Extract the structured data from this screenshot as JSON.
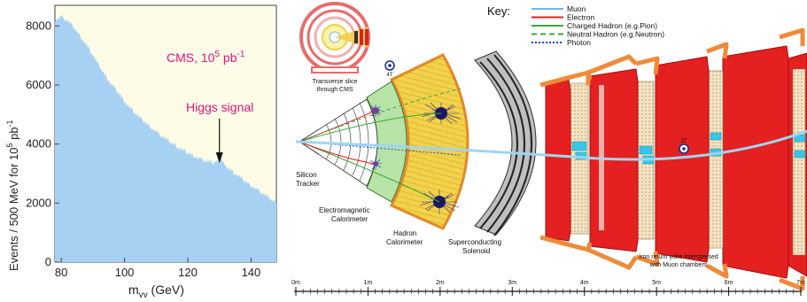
{
  "chart_data": {
    "type": "area",
    "title": "",
    "annotation_cms": "CMS, 10",
    "annotation_cms_exp": "5",
    "annotation_cms_unit": " pb",
    "annotation_cms_unit_exp": "-1",
    "annotation_signal": "Higgs  signal",
    "ylabel_prefix": "Events / 500 MeV  for 10",
    "ylabel_exp": "5",
    "ylabel_suffix": " pb",
    "ylabel_suffix_exp": "-1",
    "xlabel_main": "m",
    "xlabel_sub": "γγ",
    "xlabel_unit": " (GeV)",
    "xlim": [
      78,
      148
    ],
    "ylim": [
      0,
      8700
    ],
    "xticks": [
      80,
      100,
      120,
      140
    ],
    "yticks": [
      0,
      2000,
      4000,
      6000,
      8000
    ],
    "signal_mass": 130,
    "x": [
      78,
      80,
      82,
      84,
      86,
      88,
      90,
      92,
      94,
      96,
      98,
      100,
      102,
      104,
      106,
      108,
      110,
      112,
      114,
      116,
      118,
      120,
      122,
      124,
      126,
      128,
      129,
      130,
      131,
      132,
      134,
      136,
      138,
      140,
      142,
      144,
      146,
      148
    ],
    "y": [
      8200,
      8320,
      8180,
      7950,
      7650,
      7350,
      7000,
      6650,
      6300,
      6000,
      5750,
      5450,
      5200,
      4980,
      4780,
      4600,
      4420,
      4250,
      4100,
      3950,
      3820,
      3700,
      3600,
      3500,
      3420,
      3350,
      3450,
      3550,
      3420,
      3250,
      3080,
      2920,
      2750,
      2600,
      2450,
      2300,
      2150,
      2000
    ],
    "fill_color": "#a6d1f2",
    "plot_bg": "#fefbe6",
    "annotation_color": "#e0157a"
  },
  "detector": {
    "key_title": "Key:",
    "legend": [
      {
        "label": "Muon",
        "color": "#64bde8",
        "style": "solid"
      },
      {
        "label": "Electron",
        "color": "#e02020",
        "style": "solid"
      },
      {
        "label": "Charged Hadron (e.g.Pion)",
        "color": "#3aa83a",
        "style": "solid"
      },
      {
        "label": "Neutral Hadron (e.g.Neutron)",
        "color": "#3aa83a",
        "style": "dashed"
      },
      {
        "label": "Photon",
        "color": "#2244cc",
        "style": "dotted"
      }
    ],
    "labels": {
      "slice_line1": "Transverse slice",
      "slice_line2": "through CMS",
      "field_inner": "4T",
      "field_outer": "2T",
      "silicon_line1": "Silicon",
      "silicon_line2": "Tracker",
      "ecal_line1": "Electromagnetic",
      "ecal_line2": "Calorimeter",
      "hcal_line1": "Hadron",
      "hcal_line2": "Calorimeter",
      "solenoid_line1": "Superconducting",
      "solenoid_line2": "Solenoid",
      "yoke_line1": "Iron return yoke interspersed",
      "yoke_line2": "with Muon chambers"
    },
    "scale": [
      "0m",
      "1m",
      "2m",
      "3m",
      "4m",
      "5m",
      "6m",
      "7m"
    ]
  }
}
